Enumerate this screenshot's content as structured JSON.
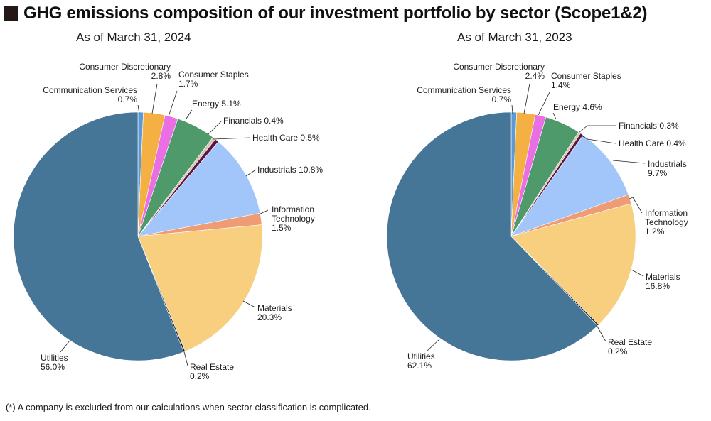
{
  "title": "GHG emissions composition of our investment portfolio by sector (Scope1&2)",
  "footnote": "(*) A company is excluded from our calculations when sector classification is complicated.",
  "chart_data": [
    {
      "type": "pie",
      "title": "As of March 31, 2024",
      "slices": [
        {
          "name": "Communication Services",
          "value": 0.7,
          "label": "0.7%",
          "color": "#5b9bd5"
        },
        {
          "name": "Consumer Discretionary",
          "value": 2.8,
          "label": "2.8%",
          "color": "#f4b042"
        },
        {
          "name": "Consumer Staples",
          "value": 1.7,
          "label": "1.7%",
          "color": "#ea6ee4"
        },
        {
          "name": "Energy",
          "value": 5.1,
          "label": "5.1%",
          "color": "#4e9a6a"
        },
        {
          "name": "Financials",
          "value": 0.4,
          "label": "0.4%",
          "color": "#d9c6b0"
        },
        {
          "name": "Health Care",
          "value": 0.5,
          "label": "0.5%",
          "color": "#5a1545"
        },
        {
          "name": "Industrials",
          "value": 10.8,
          "label": "10.8%",
          "color": "#a3c6fa"
        },
        {
          "name": "Information Technology",
          "value": 1.5,
          "label": "1.5%",
          "color": "#ee9c76"
        },
        {
          "name": "Materials",
          "value": 20.3,
          "label": "20.3%",
          "color": "#f7cf7f"
        },
        {
          "name": "Real Estate",
          "value": 0.2,
          "label": "0.2%",
          "color": "#1a1a1a"
        },
        {
          "name": "Utilities",
          "value": 56.0,
          "label": "56.0%",
          "color": "#457597"
        }
      ]
    },
    {
      "type": "pie",
      "title": "As of March 31, 2023",
      "slices": [
        {
          "name": "Communication Services",
          "value": 0.7,
          "label": "0.7%",
          "color": "#5b9bd5"
        },
        {
          "name": "Consumer Discretionary",
          "value": 2.4,
          "label": "2.4%",
          "color": "#f4b042"
        },
        {
          "name": "Consumer Staples",
          "value": 1.4,
          "label": "1.4%",
          "color": "#ea6ee4"
        },
        {
          "name": "Energy",
          "value": 4.6,
          "label": "4.6%",
          "color": "#4e9a6a"
        },
        {
          "name": "Financials",
          "value": 0.3,
          "label": "0.3%",
          "color": "#d9c6b0"
        },
        {
          "name": "Health Care",
          "value": 0.4,
          "label": "0.4%",
          "color": "#5a1545"
        },
        {
          "name": "Industrials",
          "value": 9.7,
          "label": "9.7%",
          "color": "#a3c6fa"
        },
        {
          "name": "Information Technology",
          "value": 1.2,
          "label": "1.2%",
          "color": "#ee9c76"
        },
        {
          "name": "Materials",
          "value": 16.8,
          "label": "16.8%",
          "color": "#f7cf7f"
        },
        {
          "name": "Real Estate",
          "value": 0.2,
          "label": "0.2%",
          "color": "#1a1a1a"
        },
        {
          "name": "Utilities",
          "value": 62.1,
          "label": "62.1%",
          "color": "#457597"
        }
      ]
    }
  ]
}
